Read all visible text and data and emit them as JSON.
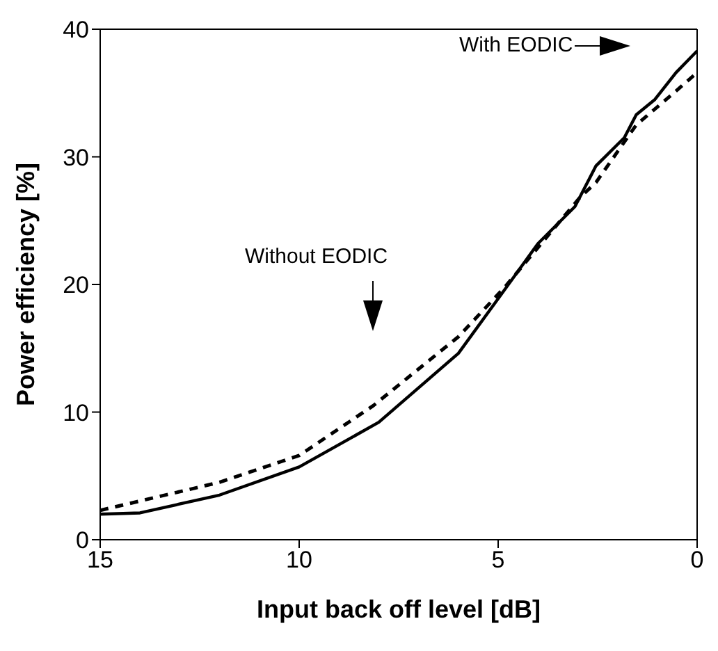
{
  "chart_data": {
    "type": "line",
    "xlabel": "Input back off level [dB]",
    "ylabel": "Power efficiency [%]",
    "xlim": [
      15,
      0
    ],
    "xticks": [
      15,
      10,
      5,
      0
    ],
    "ylim": [
      0,
      40
    ],
    "yticks": [
      0,
      10,
      20,
      30,
      40
    ],
    "grid": false,
    "marker": "none",
    "annotations": [
      "With EODIC",
      "Without EODIC"
    ],
    "series": [
      {
        "color": "#000000",
        "line_style": "solid",
        "x": [
          15,
          14,
          12,
          10,
          8,
          6,
          4.95,
          4.0,
          3.07,
          2.54,
          1.83,
          1.53,
          1.06,
          0.53,
          0
        ],
        "values": [
          2.0,
          2.1,
          3.5,
          5.7,
          9.2,
          14.6,
          19.1,
          23.2,
          26.1,
          29.3,
          31.5,
          33.3,
          34.5,
          36.6,
          38.3
        ]
      },
      {
        "color": "#000000",
        "line_style": "dashed",
        "x": [
          15,
          12,
          10,
          8.14,
          6,
          4.83,
          2.95,
          2.54,
          1.53,
          0.59,
          0
        ],
        "values": [
          2.3,
          4.5,
          6.6,
          10.5,
          15.9,
          19.8,
          26.8,
          28.0,
          32.5,
          35.0,
          36.6
        ]
      }
    ]
  }
}
